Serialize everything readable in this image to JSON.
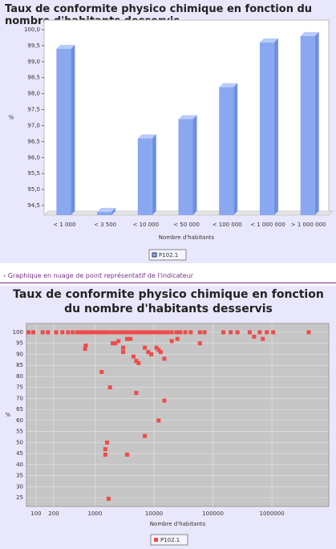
{
  "chart_data": [
    {
      "type": "bar",
      "title": "Taux de conformite physico chimique en fonction du nombre d'habitants desservis",
      "ylabel": "%",
      "xlabel": "Nombre d'habitants",
      "categories": [
        "< 1 000",
        "< 3 500",
        "< 10 000",
        "< 50 000",
        "< 100 000",
        "< 1 000 000",
        "> 1 000 000"
      ],
      "series": [
        {
          "name": "P102.1",
          "color": "#8aa8f0",
          "values": [
            99.4,
            94.3,
            96.6,
            97.2,
            98.2,
            99.6,
            99.8
          ]
        }
      ],
      "ylim": [
        94.2,
        100.3
      ],
      "yticks": [
        {
          "value": 94.5,
          "label": "94,5"
        },
        {
          "value": 95,
          "label": "95,0"
        },
        {
          "value": 95.5,
          "label": "95,5"
        },
        {
          "value": 96,
          "label": "96,0"
        },
        {
          "value": 96.5,
          "label": "96,5"
        },
        {
          "value": 97,
          "label": "97,0"
        },
        {
          "value": 97.5,
          "label": "97,5"
        },
        {
          "value": 98,
          "label": "98,0"
        },
        {
          "value": 98.5,
          "label": "98,5"
        },
        {
          "value": 99,
          "label": "99,0"
        },
        {
          "value": 99.5,
          "label": "99,5"
        },
        {
          "value": 100,
          "label": "100,0"
        }
      ]
    },
    {
      "type": "scatter",
      "title": "Taux de conformite physico chimique en fonction du nombre d'habitants desservis",
      "ylabel": "%",
      "xlabel": "Nombre d'habitants",
      "xscale": "log",
      "grid": true,
      "series": [
        {
          "name": "P102.1",
          "color": "#f04a4a",
          "x": [
            75,
            90,
            130,
            160,
            220,
            280,
            350,
            420,
            500,
            560,
            620,
            700,
            800,
            900,
            1000,
            1150,
            1300,
            1500,
            1700,
            2000,
            2300,
            2700,
            3100,
            3600,
            4200,
            4800,
            5500,
            6300,
            7200,
            8300,
            9500,
            11000,
            12500,
            14500,
            17000,
            20000,
            24000,
            28000,
            34000,
            42000,
            60000,
            72000,
            150000,
            200000,
            260000,
            420000,
            620000,
            820000,
            1050000,
            4200000,
            700,
            680,
            1300,
            1800,
            2000,
            2200,
            2500,
            3000,
            3500,
            4000,
            4500,
            5000,
            5500,
            3000,
            1600,
            1500,
            1500,
            3500,
            1700,
            7000,
            12000,
            15000,
            5000,
            7000,
            8000,
            9000,
            11000,
            12000,
            13000,
            15000,
            20000,
            25000,
            60000,
            500000,
            700000
          ],
          "values": [
            100,
            100,
            100,
            100,
            100,
            100,
            100,
            100,
            100,
            100,
            100,
            100,
            100,
            100,
            100,
            100,
            100,
            100,
            100,
            100,
            100,
            100,
            100,
            100,
            100,
            100,
            100,
            100,
            100,
            100,
            100,
            100,
            100,
            100,
            100,
            100,
            100,
            100,
            100,
            100,
            100,
            100,
            100,
            100,
            100,
            100,
            100,
            100,
            100,
            100,
            94,
            92.5,
            82,
            75,
            95,
            95,
            96,
            93,
            97,
            97,
            89,
            87,
            86,
            91,
            50,
            47,
            44.5,
            44.5,
            24.5,
            53,
            60,
            69,
            72.5,
            93,
            91,
            90,
            93,
            92,
            91,
            88,
            96,
            97,
            95,
            98,
            97
          ]
        }
      ],
      "xlim": [
        69,
        9200000
      ],
      "xticks": [
        100,
        200,
        1000,
        10000,
        100000,
        1000000
      ],
      "ylim": [
        21,
        104
      ],
      "yticks": [
        25,
        30,
        35,
        40,
        45,
        50,
        55,
        60,
        65,
        70,
        75,
        80,
        85,
        90,
        95,
        100
      ]
    }
  ],
  "link": "Graphique en nuage de point représentatif de l'indicateur"
}
